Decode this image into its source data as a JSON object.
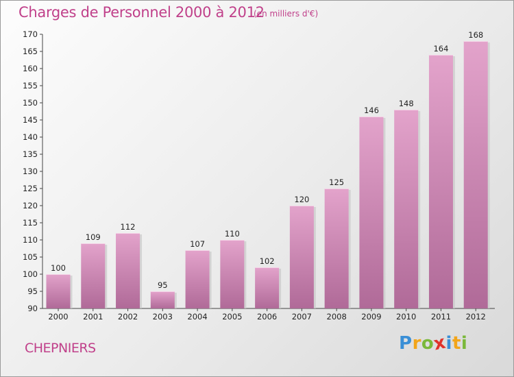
{
  "chart_data": {
    "type": "bar",
    "title": "Charges de Personnel 2000 à 2012",
    "subtitle": "(en milliers d'€)",
    "categories": [
      "2000",
      "2001",
      "2002",
      "2003",
      "2004",
      "2005",
      "2006",
      "2007",
      "2008",
      "2009",
      "2010",
      "2011",
      "2012"
    ],
    "values": [
      100,
      109,
      112,
      95,
      107,
      110,
      102,
      120,
      125,
      146,
      148,
      164,
      168
    ],
    "ylim": [
      90,
      170
    ],
    "yticks": [
      90,
      95,
      100,
      105,
      110,
      115,
      120,
      125,
      130,
      135,
      140,
      145,
      150,
      155,
      160,
      165,
      170
    ],
    "grid": false,
    "bar_color_top": "#e3a3cb",
    "bar_color_bottom": "#b06a98"
  },
  "commune": "CHEPNIERS",
  "logo": {
    "letters": [
      "P",
      "r",
      "o",
      "x",
      "i",
      "t",
      "i"
    ],
    "colors": [
      "#3a8fd6",
      "#f2a51a",
      "#7ab83a",
      "#e0322a",
      "#3a8fd6",
      "#f2a51a",
      "#7ab83a"
    ]
  }
}
